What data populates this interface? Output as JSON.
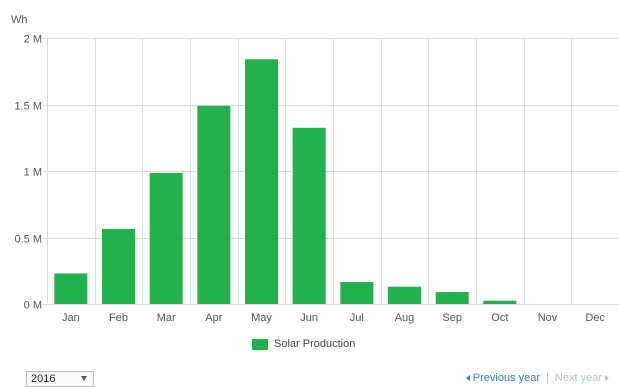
{
  "chart_data": {
    "type": "bar",
    "ylabel": "Wh",
    "categories": [
      "Jan",
      "Feb",
      "Mar",
      "Apr",
      "May",
      "Jun",
      "Jul",
      "Aug",
      "Sep",
      "Oct",
      "Nov",
      "Dec"
    ],
    "series": [
      {
        "name": "Solar Production",
        "values": [
          230000,
          565000,
          985000,
          1490000,
          1840000,
          1325000,
          165000,
          130000,
          90000,
          25000,
          0,
          0
        ],
        "color": "#22b14c"
      }
    ],
    "ylim": [
      0,
      2000000
    ],
    "yticks": [
      {
        "value": 0,
        "label": "0 M"
      },
      {
        "value": 500000,
        "label": "0.5 M"
      },
      {
        "value": 1000000,
        "label": "1 M"
      },
      {
        "value": 1500000,
        "label": "1.5 M"
      },
      {
        "value": 2000000,
        "label": "2 M"
      }
    ],
    "grid": true,
    "legend": "bottom-center"
  },
  "controls": {
    "year_selected": "2016",
    "prev_label": "Previous year",
    "separator": "|",
    "next_label": "Next year"
  },
  "colors": {
    "bar": "#22b14c",
    "grid": "#dcdcdc",
    "axis_text": "#555555"
  }
}
